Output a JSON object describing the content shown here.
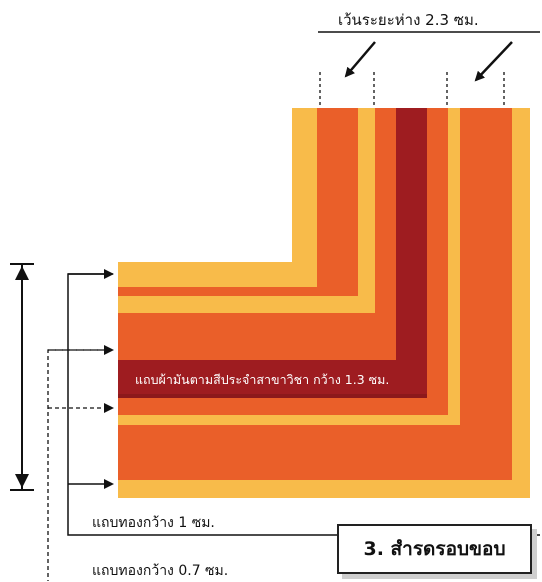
{
  "labels": {
    "gap": "เว้นระยะห่าง 2.3 ซม.",
    "ribbon": "แถบผ้ามันตามสีประจำสาขาวิชา กว้าง 1.3 ซม.",
    "gold_1cm": "แถบทองกว้าง 1 ซม.",
    "gold_07cm": "แถบทองกว้าง 0.7 ซม.",
    "title": "3. สำรดรอบขอบ"
  },
  "colors": {
    "gold": "#f8bb4a",
    "orange": "#ea5f29",
    "orange_light": "#ef7a30",
    "ribbon": "#9e1c20",
    "line": "#111111"
  }
}
